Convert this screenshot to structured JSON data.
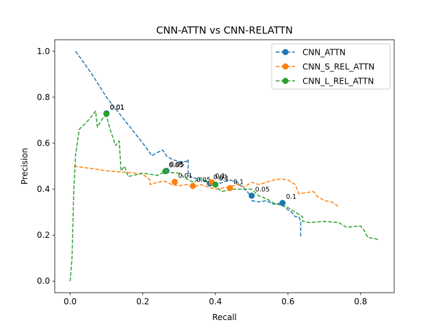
{
  "chart_data": {
    "type": "line",
    "title": "CNN-ATTN vs CNN-RELATTN",
    "xlabel": "Recall",
    "ylabel": "Precision",
    "xlim": [
      -0.0425,
      0.8925
    ],
    "ylim": [
      -0.05,
      1.05
    ],
    "xticks": [
      0.0,
      0.2,
      0.4,
      0.6,
      0.8
    ],
    "yticks": [
      0.0,
      0.2,
      0.4,
      0.6,
      0.8,
      1.0
    ],
    "xtick_labels": [
      "0.0",
      "0.2",
      "0.4",
      "0.6",
      "0.8"
    ],
    "ytick_labels": [
      "0.0",
      "0.2",
      "0.4",
      "0.6",
      "0.8",
      "1.0"
    ],
    "grid": false,
    "legend_position": "top-right",
    "series": [
      {
        "name": "CNN_ATTN",
        "color": "#1f77b4",
        "line": [
          [
            0.015,
            1.0
          ],
          [
            0.06,
            0.9
          ],
          [
            0.1,
            0.8
          ],
          [
            0.14,
            0.72
          ],
          [
            0.18,
            0.64
          ],
          [
            0.21,
            0.58
          ],
          [
            0.225,
            0.545
          ],
          [
            0.24,
            0.56
          ],
          [
            0.255,
            0.57
          ],
          [
            0.265,
            0.545
          ],
          [
            0.28,
            0.53
          ],
          [
            0.3,
            0.52
          ],
          [
            0.32,
            0.52
          ],
          [
            0.325,
            0.53
          ],
          [
            0.325,
            0.46
          ],
          [
            0.34,
            0.45
          ],
          [
            0.36,
            0.44
          ],
          [
            0.38,
            0.43
          ],
          [
            0.4,
            0.42
          ],
          [
            0.42,
            0.43
          ],
          [
            0.44,
            0.44
          ],
          [
            0.46,
            0.43
          ],
          [
            0.48,
            0.4
          ],
          [
            0.5,
            0.37
          ],
          [
            0.5,
            0.35
          ],
          [
            0.52,
            0.345
          ],
          [
            0.54,
            0.35
          ],
          [
            0.56,
            0.335
          ],
          [
            0.58,
            0.34
          ],
          [
            0.6,
            0.31
          ],
          [
            0.61,
            0.3
          ],
          [
            0.62,
            0.28
          ],
          [
            0.63,
            0.28
          ],
          [
            0.635,
            0.26
          ],
          [
            0.635,
            0.19
          ]
        ],
        "markers": [
          [
            0.1,
            0.73,
            "0.01"
          ],
          [
            0.265,
            0.48,
            "0.05"
          ],
          [
            0.385,
            0.425,
            "0.01"
          ],
          [
            0.5,
            0.372,
            "0.05"
          ],
          [
            0.585,
            0.34,
            "0.1"
          ]
        ]
      },
      {
        "name": "CNN_S_REL_ATTN",
        "color": "#ff7f0e",
        "line": [
          [
            0.01,
            0.5
          ],
          [
            0.06,
            0.49
          ],
          [
            0.1,
            0.48
          ],
          [
            0.14,
            0.475
          ],
          [
            0.18,
            0.47
          ],
          [
            0.2,
            0.465
          ],
          [
            0.22,
            0.44
          ],
          [
            0.22,
            0.42
          ],
          [
            0.24,
            0.43
          ],
          [
            0.26,
            0.435
          ],
          [
            0.28,
            0.42
          ],
          [
            0.3,
            0.415
          ],
          [
            0.32,
            0.42
          ],
          [
            0.34,
            0.41
          ],
          [
            0.36,
            0.42
          ],
          [
            0.38,
            0.41
          ],
          [
            0.4,
            0.4
          ],
          [
            0.42,
            0.405
          ],
          [
            0.44,
            0.41
          ],
          [
            0.46,
            0.42
          ],
          [
            0.48,
            0.41
          ],
          [
            0.5,
            0.43
          ],
          [
            0.52,
            0.42
          ],
          [
            0.54,
            0.43
          ],
          [
            0.56,
            0.44
          ],
          [
            0.58,
            0.445
          ],
          [
            0.6,
            0.44
          ],
          [
            0.61,
            0.43
          ],
          [
            0.62,
            0.42
          ],
          [
            0.63,
            0.38
          ],
          [
            0.65,
            0.385
          ],
          [
            0.67,
            0.39
          ],
          [
            0.68,
            0.37
          ],
          [
            0.7,
            0.35
          ],
          [
            0.72,
            0.345
          ],
          [
            0.735,
            0.33
          ],
          [
            0.738,
            0.32
          ]
        ],
        "markers": [
          [
            0.288,
            0.432,
            "0.01"
          ],
          [
            0.338,
            0.414,
            "0.05"
          ],
          [
            0.39,
            0.43,
            "0.1"
          ],
          [
            0.44,
            0.405,
            "0.1"
          ]
        ]
      },
      {
        "name": "CNN_L_REL_ATTN",
        "color": "#2ca02c",
        "line": [
          [
            0.0,
            0.0
          ],
          [
            0.005,
            0.1
          ],
          [
            0.01,
            0.4
          ],
          [
            0.015,
            0.55
          ],
          [
            0.025,
            0.66
          ],
          [
            0.05,
            0.7
          ],
          [
            0.07,
            0.74
          ],
          [
            0.075,
            0.67
          ],
          [
            0.09,
            0.71
          ],
          [
            0.1,
            0.72
          ],
          [
            0.11,
            0.66
          ],
          [
            0.125,
            0.59
          ],
          [
            0.135,
            0.61
          ],
          [
            0.14,
            0.48
          ],
          [
            0.15,
            0.5
          ],
          [
            0.16,
            0.455
          ],
          [
            0.2,
            0.47
          ],
          [
            0.24,
            0.46
          ],
          [
            0.26,
            0.475
          ],
          [
            0.3,
            0.47
          ],
          [
            0.32,
            0.445
          ],
          [
            0.34,
            0.43
          ],
          [
            0.36,
            0.45
          ],
          [
            0.38,
            0.43
          ],
          [
            0.4,
            0.41
          ],
          [
            0.42,
            0.39
          ],
          [
            0.44,
            0.4
          ],
          [
            0.5,
            0.4
          ],
          [
            0.52,
            0.37
          ],
          [
            0.54,
            0.36
          ],
          [
            0.56,
            0.34
          ],
          [
            0.58,
            0.33
          ],
          [
            0.6,
            0.32
          ],
          [
            0.62,
            0.3
          ],
          [
            0.64,
            0.28
          ],
          [
            0.64,
            0.26
          ],
          [
            0.66,
            0.255
          ],
          [
            0.7,
            0.26
          ],
          [
            0.74,
            0.255
          ],
          [
            0.76,
            0.235
          ],
          [
            0.8,
            0.24
          ],
          [
            0.81,
            0.22
          ],
          [
            0.82,
            0.19
          ],
          [
            0.84,
            0.185
          ],
          [
            0.85,
            0.18
          ]
        ],
        "markers": [
          [
            0.1,
            0.728,
            "0.01"
          ],
          [
            0.262,
            0.478,
            "0.05"
          ],
          [
            0.4,
            0.42,
            "0.1"
          ]
        ]
      }
    ]
  }
}
